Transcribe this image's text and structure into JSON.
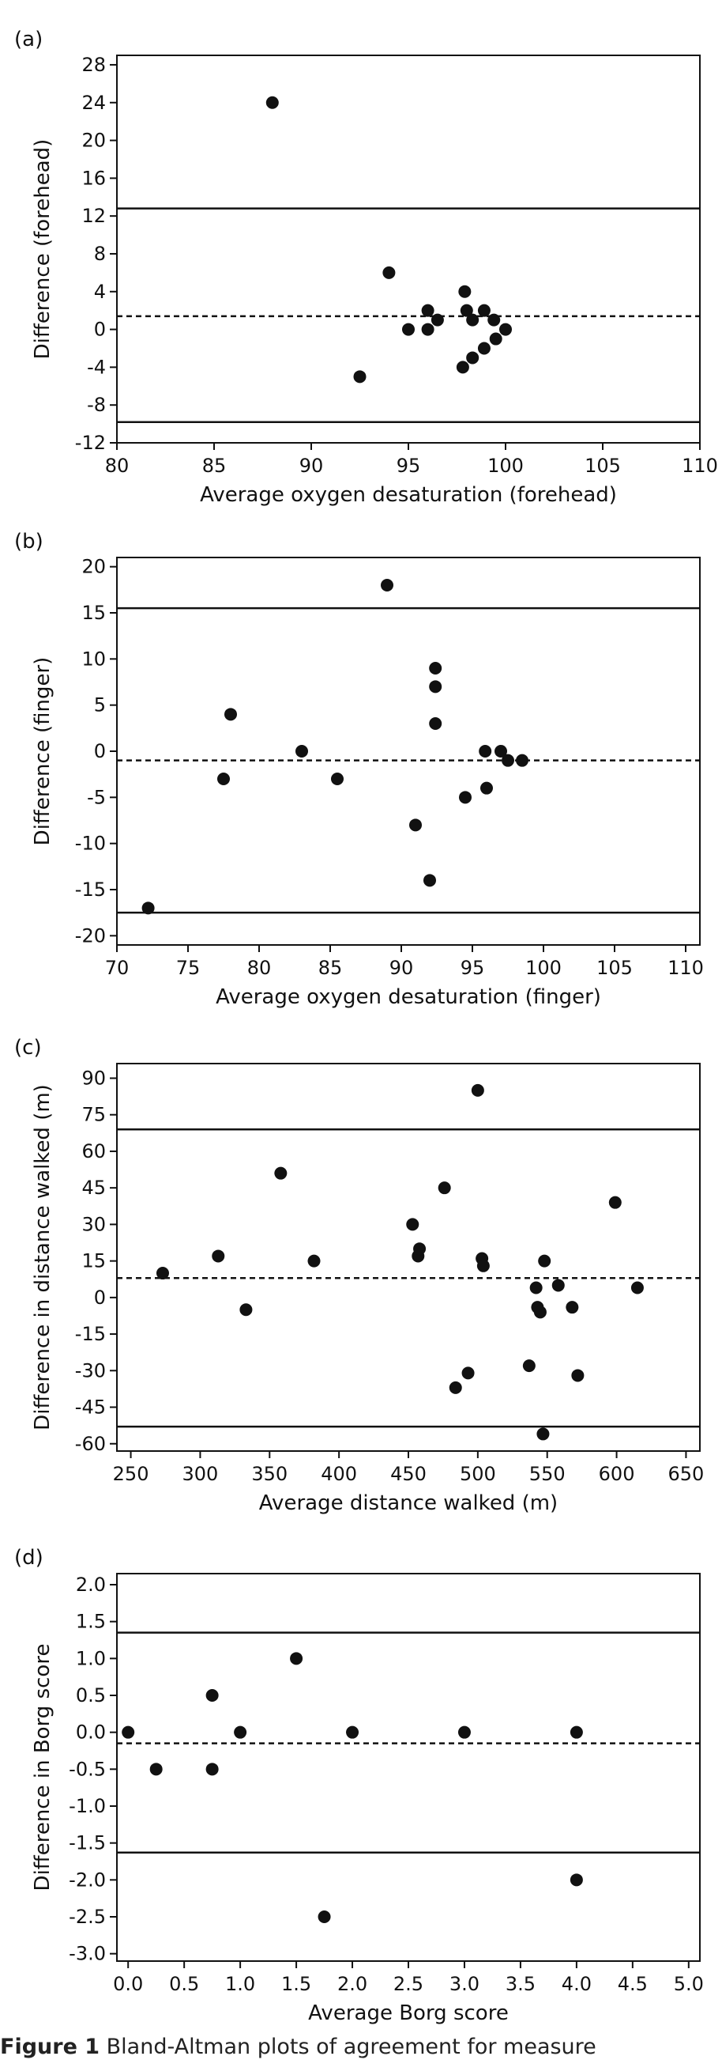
{
  "caption": {
    "label": "Figure 1",
    "text": "  Bland-Altman plots of agreement for measure"
  },
  "chart_data": [
    {
      "type": "scatter",
      "panel_label": "(a)",
      "xlabel": "Average oxygen desaturation (forehead)",
      "ylabel": "Difference (forehead)",
      "xlim": [
        80,
        110
      ],
      "ylim": [
        -12,
        29
      ],
      "xticks": [
        80,
        85,
        90,
        95,
        100,
        105,
        110
      ],
      "yticks": [
        -12,
        -8,
        -4,
        0,
        4,
        8,
        12,
        16,
        20,
        24,
        28
      ],
      "grid": false,
      "mean_line": 1.4,
      "limits_of_agreement": [
        12.8,
        -9.8
      ],
      "points": [
        {
          "x": 88,
          "y": 24
        },
        {
          "x": 92.5,
          "y": -5
        },
        {
          "x": 94,
          "y": 6
        },
        {
          "x": 95,
          "y": 0
        },
        {
          "x": 96,
          "y": 2
        },
        {
          "x": 96,
          "y": 0
        },
        {
          "x": 96.5,
          "y": 1
        },
        {
          "x": 97.9,
          "y": 4
        },
        {
          "x": 98,
          "y": 2
        },
        {
          "x": 97.8,
          "y": -4
        },
        {
          "x": 98.3,
          "y": 1
        },
        {
          "x": 98.3,
          "y": -3
        },
        {
          "x": 98.9,
          "y": 2
        },
        {
          "x": 98.9,
          "y": -2
        },
        {
          "x": 99.4,
          "y": 1
        },
        {
          "x": 99.5,
          "y": -1
        },
        {
          "x": 100,
          "y": 0
        }
      ]
    },
    {
      "type": "scatter",
      "panel_label": "(b)",
      "xlabel": "Average oxygen desaturation (finger)",
      "ylabel": "Difference (finger)",
      "xlim": [
        70,
        111
      ],
      "ylim": [
        -21,
        21
      ],
      "xticks": [
        70,
        75,
        80,
        85,
        90,
        95,
        100,
        105,
        110
      ],
      "yticks": [
        -20,
        -15,
        -10,
        -5,
        0,
        5,
        10,
        15,
        20
      ],
      "grid": false,
      "mean_line": -1,
      "limits_of_agreement": [
        15.5,
        -17.5
      ],
      "points": [
        {
          "x": 72.2,
          "y": -17
        },
        {
          "x": 77.5,
          "y": -3
        },
        {
          "x": 78,
          "y": 4
        },
        {
          "x": 83,
          "y": 0
        },
        {
          "x": 85.5,
          "y": -3
        },
        {
          "x": 89,
          "y": 18
        },
        {
          "x": 91,
          "y": -8
        },
        {
          "x": 92,
          "y": -14
        },
        {
          "x": 92.4,
          "y": 9
        },
        {
          "x": 92.4,
          "y": 7
        },
        {
          "x": 92.4,
          "y": 3
        },
        {
          "x": 94.5,
          "y": -5
        },
        {
          "x": 95.9,
          "y": 0
        },
        {
          "x": 96,
          "y": -4
        },
        {
          "x": 97,
          "y": 0
        },
        {
          "x": 97.5,
          "y": -1
        },
        {
          "x": 98.5,
          "y": -1
        }
      ]
    },
    {
      "type": "scatter",
      "panel_label": "(c)",
      "xlabel": "Average distance walked (m)",
      "ylabel": "Difference in distance walked (m)",
      "xlim": [
        240,
        660
      ],
      "ylim": [
        -63,
        96
      ],
      "xticks": [
        250,
        300,
        350,
        400,
        450,
        500,
        550,
        600,
        650
      ],
      "yticks": [
        -60,
        -45,
        -30,
        -15,
        0,
        15,
        30,
        45,
        60,
        75,
        90
      ],
      "grid": false,
      "mean_line": 8,
      "limits_of_agreement": [
        69,
        -53
      ],
      "points": [
        {
          "x": 273,
          "y": 10
        },
        {
          "x": 313,
          "y": 17
        },
        {
          "x": 333,
          "y": -5
        },
        {
          "x": 358,
          "y": 51
        },
        {
          "x": 382,
          "y": 15
        },
        {
          "x": 453,
          "y": 30
        },
        {
          "x": 457,
          "y": 17
        },
        {
          "x": 458,
          "y": 20
        },
        {
          "x": 476,
          "y": 45
        },
        {
          "x": 484,
          "y": -37
        },
        {
          "x": 493,
          "y": -31
        },
        {
          "x": 500,
          "y": 85
        },
        {
          "x": 503,
          "y": 16
        },
        {
          "x": 504,
          "y": 13
        },
        {
          "x": 537,
          "y": -28
        },
        {
          "x": 542,
          "y": 4
        },
        {
          "x": 543,
          "y": -4
        },
        {
          "x": 545,
          "y": -6
        },
        {
          "x": 547,
          "y": -56
        },
        {
          "x": 548,
          "y": 15
        },
        {
          "x": 558,
          "y": 5
        },
        {
          "x": 568,
          "y": -4
        },
        {
          "x": 572,
          "y": -32
        },
        {
          "x": 599,
          "y": 39
        },
        {
          "x": 615,
          "y": 4
        }
      ]
    },
    {
      "type": "scatter",
      "panel_label": "(d)",
      "xlabel": "Average Borg score",
      "ylabel": "Difference in Borg score",
      "xlim": [
        -0.1,
        5.1
      ],
      "ylim": [
        -3.1,
        2.15
      ],
      "xticks": [
        0.0,
        0.5,
        1.0,
        1.5,
        2.0,
        2.5,
        3.0,
        3.5,
        4.0,
        4.5,
        5.0
      ],
      "xtick_labels": [
        "0.0",
        "0.5",
        "1.0",
        "1.5",
        "2.0",
        "2.5",
        "3.0",
        "3.5",
        "4.0",
        "4.5",
        "5.0"
      ],
      "yticks": [
        -3.0,
        -2.5,
        -2.0,
        -1.5,
        -1.0,
        -0.5,
        0.0,
        0.5,
        1.0,
        1.5,
        2.0
      ],
      "ytick_labels": [
        "-3.0",
        "-2.5",
        "-2.0",
        "-1.5",
        "-1.0",
        "-0.5",
        "0.0",
        "0.5",
        "1.0",
        "1.5",
        "2.0"
      ],
      "grid": false,
      "mean_line": -0.15,
      "limits_of_agreement": [
        1.35,
        -1.63
      ],
      "points": [
        {
          "x": 0.0,
          "y": 0.0
        },
        {
          "x": 0.25,
          "y": -0.5
        },
        {
          "x": 0.75,
          "y": 0.5
        },
        {
          "x": 0.75,
          "y": -0.5
        },
        {
          "x": 1.0,
          "y": 0.0
        },
        {
          "x": 1.5,
          "y": 1.0
        },
        {
          "x": 1.75,
          "y": -2.5
        },
        {
          "x": 2.0,
          "y": 0.0
        },
        {
          "x": 3.0,
          "y": 0.0
        },
        {
          "x": 4.0,
          "y": 0.0
        },
        {
          "x": 4.0,
          "y": -2.0
        }
      ]
    }
  ]
}
